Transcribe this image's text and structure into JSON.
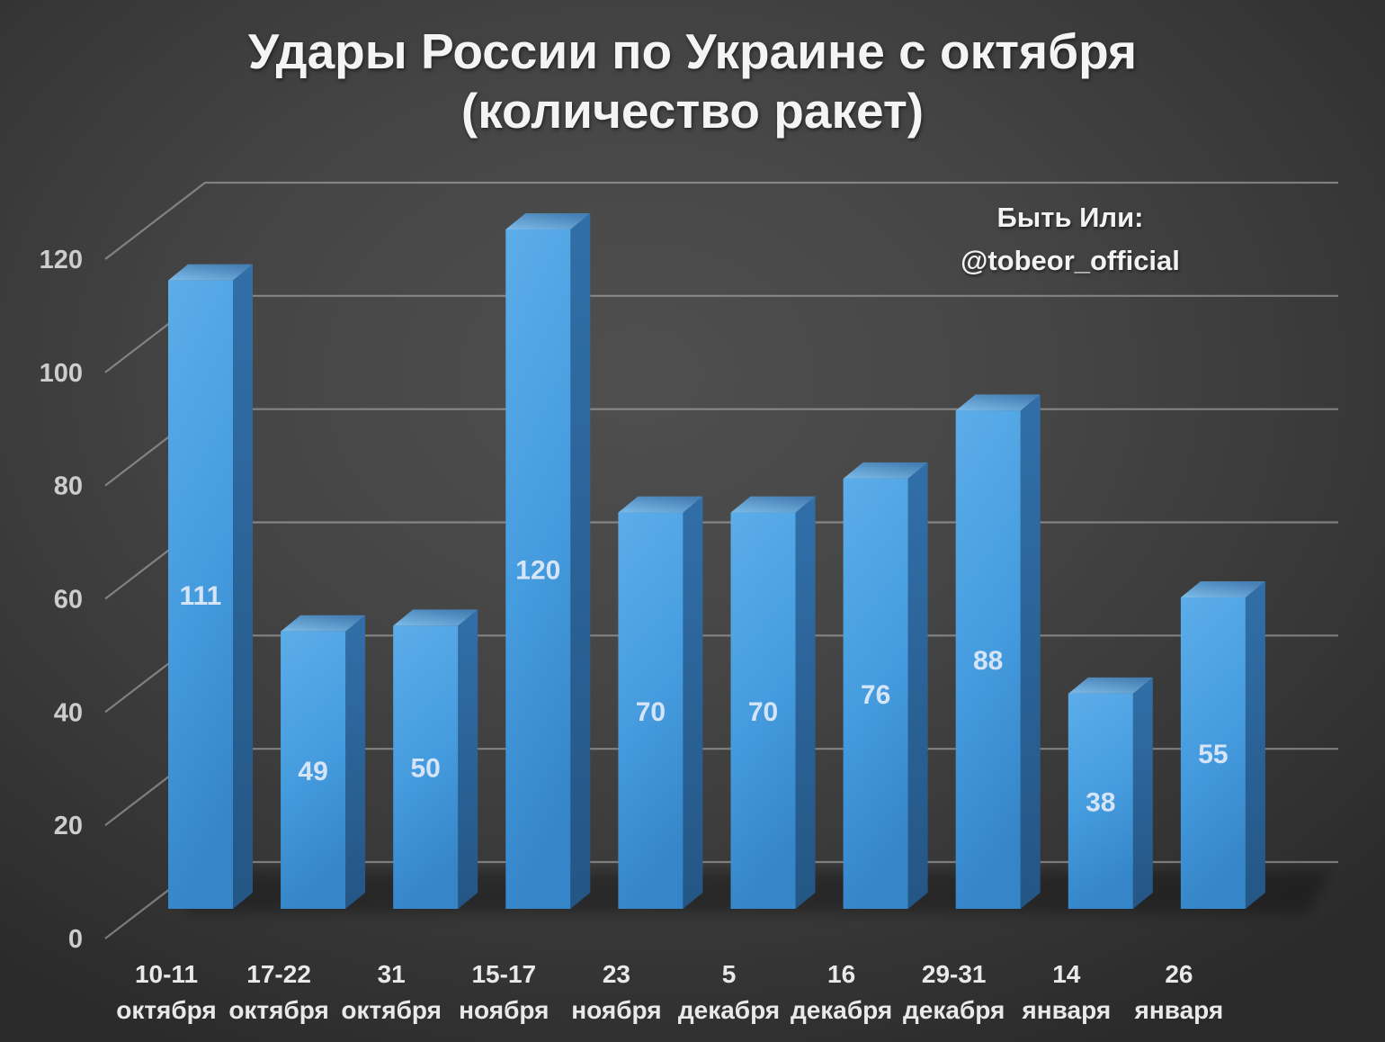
{
  "title": {
    "line1": "Удары России по Украине с октября",
    "line2": "(количество ракет)"
  },
  "watermark": {
    "line1": "Быть Или:",
    "line2": "@tobeor_official"
  },
  "chart_data": {
    "type": "bar",
    "style": "3d",
    "title": "Удары России по Украине с октября (количество ракет)",
    "annotation": "Быть Или: @tobeor_official",
    "categories": [
      "10-11 октября",
      "17-22 октября",
      "31 октября",
      "15-17 ноября",
      "23 ноября",
      "5 декабря",
      "16 декабря",
      "29-31 декабря",
      "14 января",
      "26 января"
    ],
    "categories_two_line": [
      [
        "10-11",
        "октября"
      ],
      [
        "17-22",
        "октября"
      ],
      [
        "31",
        "октября"
      ],
      [
        "15-17",
        "ноября"
      ],
      [
        "23",
        "ноября"
      ],
      [
        "5",
        "декабря"
      ],
      [
        "16",
        "декабря"
      ],
      [
        "29-31",
        "декабря"
      ],
      [
        "14",
        "января"
      ],
      [
        "26",
        "января"
      ]
    ],
    "values": [
      111,
      49,
      50,
      120,
      70,
      70,
      76,
      88,
      38,
      55
    ],
    "xlabel": "",
    "ylabel": "",
    "ylim": [
      0,
      120
    ],
    "ytick_step": 20,
    "ytick_labels": [
      "0",
      "20",
      "40",
      "60",
      "80",
      "100",
      "120"
    ],
    "grid": true,
    "legend": false,
    "colors": {
      "bar_front": "#459cde",
      "bar_front_light": "#5cade9",
      "bar_front_dark": "#3586c9",
      "bar_side": "#2a639a",
      "bar_top": "#6aaede",
      "gridline": "#ababab",
      "background": "#3d3d3d",
      "title_text": "#f4f4f4",
      "value_label_text": "#d5e5f7"
    }
  }
}
